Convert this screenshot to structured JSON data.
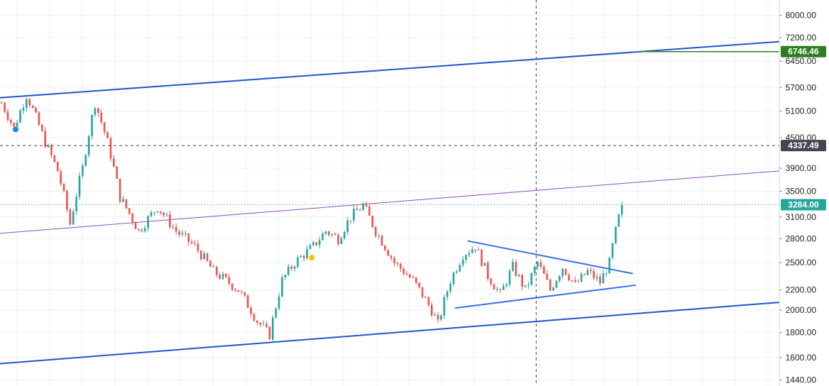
{
  "chart_data": {
    "type": "candlestick",
    "y_scale": "log",
    "ylim": [
      1400,
      8600
    ],
    "grid": true,
    "y_ticks": [
      "8000.00",
      "7200.00",
      "6450.00",
      "5700.00",
      "5100.00",
      "4500.00",
      "3900.00",
      "3500.00",
      "3100.00",
      "2800.00",
      "2500.00",
      "2200.00",
      "2000.00",
      "1800.00",
      "1600.00",
      "1440.00"
    ],
    "price_labels": [
      {
        "text": "6746.46",
        "value": 6746.46,
        "color": "#2e7d1f"
      },
      {
        "text": "4337.49",
        "value": 4337.49,
        "color": "#434651"
      },
      {
        "text": "3284.00",
        "value": 3284.0,
        "color": "#26a69a"
      }
    ],
    "colors": {
      "up": "#26a69a",
      "down": "#ef5350",
      "channel": "#1f56c8",
      "triangle": "#3a74de",
      "midline": "#8e4db0",
      "target": "#2e7d1f",
      "crosshair": "#434651",
      "current": "#26a69a"
    },
    "anchor_points": [
      [
        0,
        5300
      ],
      [
        4,
        4700
      ],
      [
        8,
        5500
      ],
      [
        14,
        4400
      ],
      [
        18,
        3850
      ],
      [
        22,
        3000
      ],
      [
        26,
        3900
      ],
      [
        30,
        5300
      ],
      [
        34,
        4400
      ],
      [
        38,
        3400
      ],
      [
        44,
        2900
      ],
      [
        50,
        3250
      ],
      [
        56,
        2900
      ],
      [
        62,
        2700
      ],
      [
        68,
        2400
      ],
      [
        76,
        2200
      ],
      [
        82,
        1900
      ],
      [
        86,
        1780
      ],
      [
        90,
        2300
      ],
      [
        94,
        2500
      ],
      [
        100,
        2700
      ],
      [
        104,
        2900
      ],
      [
        108,
        2800
      ],
      [
        112,
        3100
      ],
      [
        116,
        3280
      ],
      [
        120,
        2900
      ],
      [
        126,
        2500
      ],
      [
        132,
        2300
      ],
      [
        138,
        2000
      ],
      [
        140,
        1870
      ],
      [
        144,
        2300
      ],
      [
        148,
        2600
      ],
      [
        152,
        2700
      ],
      [
        156,
        2350
      ],
      [
        160,
        2150
      ],
      [
        164,
        2450
      ],
      [
        168,
        2200
      ],
      [
        172,
        2500
      ],
      [
        176,
        2200
      ],
      [
        180,
        2450
      ],
      [
        184,
        2250
      ],
      [
        188,
        2400
      ],
      [
        192,
        2280
      ],
      [
        195,
        2500
      ],
      [
        197,
        2900
      ],
      [
        199,
        3284
      ]
    ],
    "trend_lines": [
      {
        "name": "upper-channel-line",
        "color": "#1f56c8",
        "width": 2,
        "from": [
          0,
          5430
        ],
        "to": [
          250,
          7070
        ]
      },
      {
        "name": "lower-channel-line",
        "color": "#1f56c8",
        "width": 2,
        "from": [
          0,
          1555
        ],
        "to": [
          250,
          2075
        ]
      },
      {
        "name": "middle-trend-line",
        "color": "#8e4db0",
        "width": 1,
        "from": [
          0,
          2870
        ],
        "to": [
          250,
          3850
        ]
      },
      {
        "name": "triangle-upper-line",
        "color": "#3a74de",
        "width": 2,
        "from": [
          150,
          2770
        ],
        "to": [
          203,
          2375
        ]
      },
      {
        "name": "triangle-lower-line",
        "color": "#3a74de",
        "width": 2,
        "from": [
          146,
          2020
        ],
        "to": [
          204,
          2250
        ]
      },
      {
        "name": "target-level-line",
        "color": "#2e7d1f",
        "width": 1.5,
        "from": [
          205,
          6746.46
        ],
        "to": [
          250,
          6746.46
        ]
      }
    ],
    "markers": [
      {
        "name": "blue-marker",
        "color": "#1e88e5",
        "x": 5,
        "y": 4680
      },
      {
        "name": "yellow-marker",
        "color": "#f4c20d",
        "x": 100,
        "y": 2560
      }
    ],
    "crosshair": {
      "x": 172,
      "y": 4337.49
    }
  }
}
